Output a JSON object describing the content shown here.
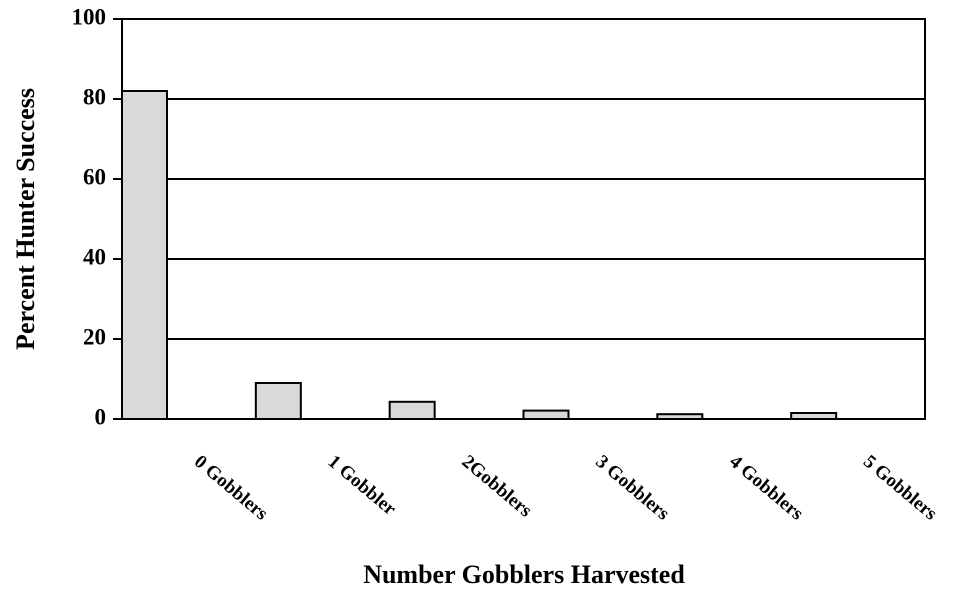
{
  "chart_data": {
    "type": "bar",
    "x_label": "Number Gobblers Harvested",
    "y_label": "Percent Hunter Success",
    "categories": [
      "0 Gobblers",
      "1 Gobbler",
      "2Gobblers",
      "3 Gobblers",
      "4 Gobblers",
      "5 Gobblers"
    ],
    "values": [
      82,
      9,
      4.3,
      2.1,
      1.2,
      1.5
    ],
    "color": "#d9d9d9",
    "ylim": [
      0,
      100
    ],
    "yticks": [
      0,
      20,
      40,
      60,
      80,
      100
    ],
    "grid": true
  }
}
